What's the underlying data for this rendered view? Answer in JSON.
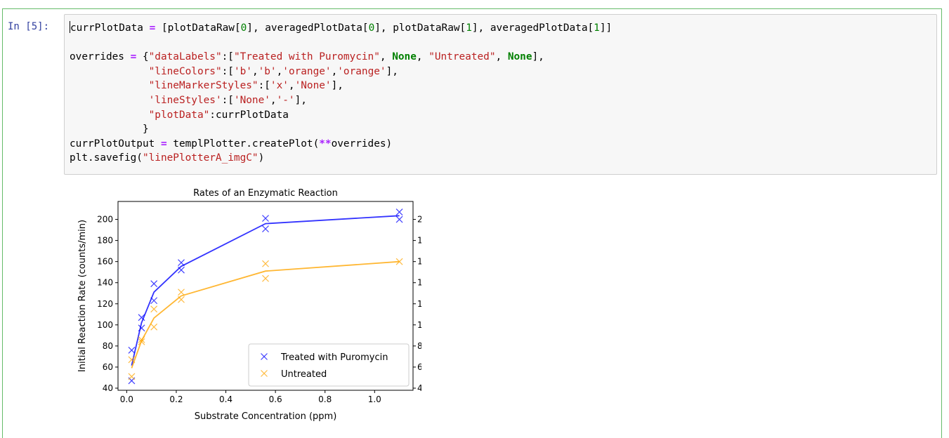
{
  "cell": {
    "prompt": "In [5]:",
    "code_lines": [
      [
        [
          "t",
          "currPlotData "
        ],
        [
          "op",
          "="
        ],
        [
          "t",
          " [plotDataRaw["
        ],
        [
          "num",
          "0"
        ],
        [
          "t",
          "], averagedPlotData["
        ],
        [
          "num",
          "0"
        ],
        [
          "t",
          "], plotDataRaw["
        ],
        [
          "num",
          "1"
        ],
        [
          "t",
          "], averagedPlotData["
        ],
        [
          "num",
          "1"
        ],
        [
          "t",
          "]]"
        ]
      ],
      [],
      [
        [
          "t",
          "overrides "
        ],
        [
          "op",
          "="
        ],
        [
          "t",
          " {"
        ],
        [
          "str",
          "\"dataLabels\""
        ],
        [
          "t",
          ":["
        ],
        [
          "str",
          "\"Treated with Puromycin\""
        ],
        [
          "t",
          ", "
        ],
        [
          "kw",
          "None"
        ],
        [
          "t",
          ", "
        ],
        [
          "str",
          "\"Untreated\""
        ],
        [
          "t",
          ", "
        ],
        [
          "kw",
          "None"
        ],
        [
          "t",
          "],"
        ]
      ],
      [
        [
          "t",
          "             "
        ],
        [
          "str",
          "\"lineColors\""
        ],
        [
          "t",
          ":["
        ],
        [
          "str",
          "'b'"
        ],
        [
          "t",
          ","
        ],
        [
          "str",
          "'b'"
        ],
        [
          "t",
          ","
        ],
        [
          "str",
          "'orange'"
        ],
        [
          "t",
          ","
        ],
        [
          "str",
          "'orange'"
        ],
        [
          "t",
          "],"
        ]
      ],
      [
        [
          "t",
          "             "
        ],
        [
          "str",
          "\"lineMarkerStyles\""
        ],
        [
          "t",
          ":["
        ],
        [
          "str",
          "'x'"
        ],
        [
          "t",
          ","
        ],
        [
          "str",
          "'None'"
        ],
        [
          "t",
          "],"
        ]
      ],
      [
        [
          "t",
          "             "
        ],
        [
          "str",
          "'lineStyles'"
        ],
        [
          "t",
          ":["
        ],
        [
          "str",
          "'None'"
        ],
        [
          "t",
          ","
        ],
        [
          "str",
          "'-'"
        ],
        [
          "t",
          "],"
        ]
      ],
      [
        [
          "t",
          "             "
        ],
        [
          "str",
          "\"plotData\""
        ],
        [
          "t",
          ":currPlotData"
        ]
      ],
      [
        [
          "t",
          "            }"
        ]
      ],
      [
        [
          "t",
          "currPlotOutput "
        ],
        [
          "op",
          "="
        ],
        [
          "t",
          " templPlotter.createPlot("
        ],
        [
          "op",
          "**"
        ],
        [
          "t",
          "overrides)"
        ]
      ],
      [
        [
          "t",
          "plt.savefig("
        ],
        [
          "str",
          "\"linePlotterA_imgC\""
        ],
        [
          "t",
          ")"
        ]
      ]
    ]
  },
  "chart_data": {
    "type": "line",
    "title": "Rates of an Enzymatic Reaction",
    "xlabel": "Substrate Concentration (ppm)",
    "ylabel": "Initial Reaction Rate (counts/min)",
    "xlim": [
      -0.035,
      1.155
    ],
    "ylim": [
      38,
      217
    ],
    "xticks": [
      0.0,
      0.2,
      0.4,
      0.6,
      0.8,
      1.0
    ],
    "xtick_labels": [
      "0.0",
      "0.2",
      "0.4",
      "0.6",
      "0.8",
      "1.0"
    ],
    "yticks": [
      40,
      60,
      80,
      100,
      120,
      140,
      160,
      180,
      200
    ],
    "ytick_labels": [
      "40",
      "60",
      "80",
      "100",
      "120",
      "140",
      "160",
      "180",
      "200"
    ],
    "right_axis_ticks": true,
    "grid": false,
    "legend_position": "lower-right",
    "series": [
      {
        "name": "Treated with Puromycin",
        "color": "#0000ff",
        "marker": "x",
        "line": "none",
        "x": [
          0.02,
          0.02,
          0.06,
          0.06,
          0.11,
          0.11,
          0.22,
          0.22,
          0.56,
          0.56,
          1.1,
          1.1
        ],
        "y": [
          76,
          47,
          97,
          107,
          123,
          139,
          159,
          152,
          191,
          201,
          207,
          200
        ]
      },
      {
        "name": "",
        "color": "#0000ff",
        "marker": "none",
        "line": "solid",
        "x": [
          0.02,
          0.06,
          0.11,
          0.22,
          0.56,
          1.1
        ],
        "y": [
          61.5,
          102,
          131,
          155.5,
          196,
          203.5
        ]
      },
      {
        "name": "Untreated",
        "color": "#ffa500",
        "marker": "x",
        "line": "none",
        "x": [
          0.02,
          0.02,
          0.06,
          0.06,
          0.11,
          0.11,
          0.22,
          0.22,
          0.56,
          0.56,
          1.1
        ],
        "y": [
          67,
          51,
          84,
          86,
          98,
          115,
          131,
          124,
          144,
          158,
          160
        ]
      },
      {
        "name": "",
        "color": "#ffa500",
        "marker": "none",
        "line": "solid",
        "x": [
          0.02,
          0.06,
          0.11,
          0.22,
          0.56,
          1.1
        ],
        "y": [
          59,
          85,
          106.5,
          127.5,
          151,
          160
        ]
      }
    ]
  }
}
